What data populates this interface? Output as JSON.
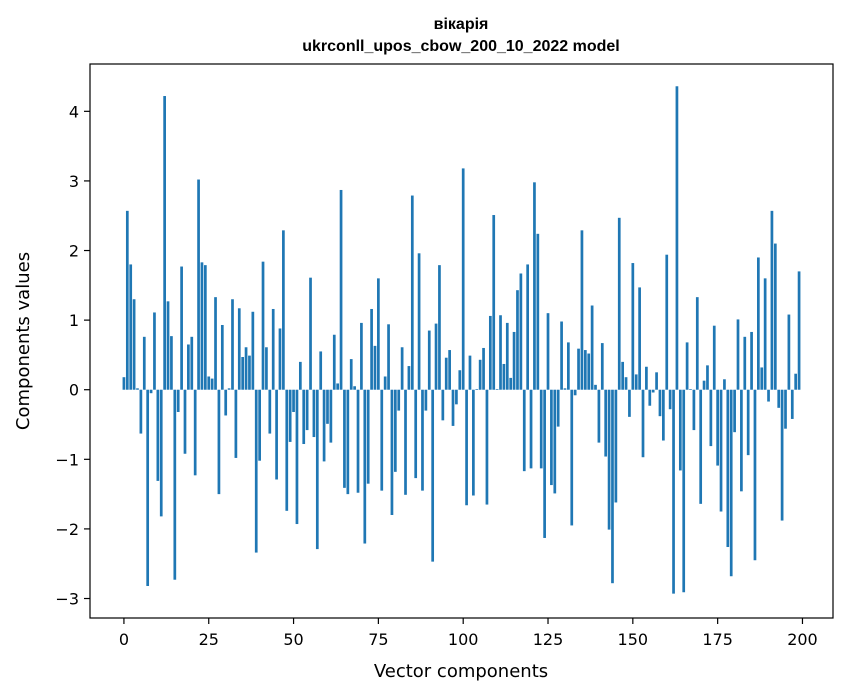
{
  "chart_data": {
    "type": "bar",
    "title_line1": "вікарія",
    "title_line2": "ukrconll_upos_cbow_200_10_2022 model",
    "xlabel": "Vector components",
    "ylabel": "Components values",
    "xlim": [
      -10,
      209
    ],
    "ylim": [
      -3.28,
      4.68
    ],
    "x_ticks": [
      0,
      25,
      50,
      75,
      100,
      125,
      150,
      175,
      200
    ],
    "y_ticks": [
      -3,
      -2,
      -1,
      0,
      1,
      2,
      3,
      4
    ],
    "y_tick_labels": [
      "−3",
      "−2",
      "−1",
      "0",
      "1",
      "2",
      "3",
      "4"
    ],
    "bar_color": "#1f77b4",
    "grid": false,
    "legend": "none",
    "x": [
      0,
      1,
      2,
      3,
      4,
      5,
      6,
      7,
      8,
      9,
      10,
      11,
      12,
      13,
      14,
      15,
      16,
      17,
      18,
      19,
      20,
      21,
      22,
      23,
      24,
      25,
      26,
      27,
      28,
      29,
      30,
      31,
      32,
      33,
      34,
      35,
      36,
      37,
      38,
      39,
      40,
      41,
      42,
      43,
      44,
      45,
      46,
      47,
      48,
      49,
      50,
      51,
      52,
      53,
      54,
      55,
      56,
      57,
      58,
      59,
      60,
      61,
      62,
      63,
      64,
      65,
      66,
      67,
      68,
      69,
      70,
      71,
      72,
      73,
      74,
      75,
      76,
      77,
      78,
      79,
      80,
      81,
      82,
      83,
      84,
      85,
      86,
      87,
      88,
      89,
      90,
      91,
      92,
      93,
      94,
      95,
      96,
      97,
      98,
      99,
      100,
      101,
      102,
      103,
      104,
      105,
      106,
      107,
      108,
      109,
      110,
      111,
      112,
      113,
      114,
      115,
      116,
      117,
      118,
      119,
      120,
      121,
      122,
      123,
      124,
      125,
      126,
      127,
      128,
      129,
      130,
      131,
      132,
      133,
      134,
      135,
      136,
      137,
      138,
      139,
      140,
      141,
      142,
      143,
      144,
      145,
      146,
      147,
      148,
      149,
      150,
      151,
      152,
      153,
      154,
      155,
      156,
      157,
      158,
      159,
      160,
      161,
      162,
      163,
      164,
      165,
      166,
      167,
      168,
      169,
      170,
      171,
      172,
      173,
      174,
      175,
      176,
      177,
      178,
      179,
      180,
      181,
      182,
      183,
      184,
      185,
      186,
      187,
      188,
      189,
      190,
      191,
      192,
      193,
      194,
      195,
      196,
      197,
      198,
      199
    ],
    "values": [
      0.18,
      2.57,
      1.8,
      1.3,
      0.02,
      -0.63,
      0.76,
      -2.82,
      -0.05,
      1.11,
      -1.31,
      -1.82,
      4.22,
      1.27,
      0.77,
      -2.73,
      -0.32,
      1.77,
      -0.92,
      0.65,
      0.76,
      -1.23,
      3.02,
      1.83,
      1.79,
      0.19,
      0.16,
      1.33,
      -1.5,
      0.93,
      -0.37,
      0.02,
      1.3,
      -0.98,
      1.17,
      0.47,
      0.61,
      0.49,
      1.12,
      -2.34,
      -1.02,
      1.84,
      0.61,
      -0.63,
      1.16,
      -1.29,
      0.88,
      2.29,
      -1.74,
      -0.75,
      -0.32,
      -1.93,
      0.4,
      -0.78,
      -0.58,
      1.61,
      -0.68,
      -2.29,
      0.55,
      -1.03,
      -0.49,
      -0.76,
      0.79,
      0.09,
      2.87,
      -1.41,
      -1.5,
      0.44,
      0.05,
      -1.48,
      0.96,
      -2.21,
      -1.35,
      1.16,
      0.63,
      1.6,
      -1.45,
      0.19,
      0.94,
      -1.8,
      -1.18,
      -0.3,
      0.61,
      -1.51,
      0.34,
      2.79,
      -1.27,
      1.96,
      -1.45,
      -0.3,
      0.85,
      -2.47,
      0.95,
      1.79,
      -0.44,
      0.46,
      0.57,
      -0.52,
      -0.21,
      0.28,
      3.18,
      -1.66,
      0.49,
      -1.52,
      0.01,
      0.43,
      0.6,
      -1.65,
      1.06,
      2.51,
      0.01,
      1.07,
      0.37,
      0.96,
      0.17,
      0.83,
      1.43,
      1.67,
      -1.17,
      1.8,
      -1.13,
      2.98,
      2.24,
      -1.13,
      -2.13,
      1.1,
      -1.37,
      -1.49,
      -0.53,
      0.98,
      0.02,
      0.68,
      -1.95,
      -0.08,
      0.59,
      2.29,
      0.57,
      0.52,
      1.21,
      0.07,
      -0.76,
      0.67,
      -0.96,
      -2.01,
      -2.78,
      -1.62,
      2.47,
      0.4,
      0.18,
      -0.39,
      1.82,
      0.22,
      1.47,
      -0.97,
      0.33,
      -0.23,
      -0.04,
      0.25,
      -0.38,
      -0.73,
      1.94,
      -0.28,
      -2.93,
      4.36,
      -1.16,
      -2.91,
      0.68,
      0.01,
      -0.58,
      1.33,
      -1.64,
      0.13,
      0.35,
      -0.81,
      0.92,
      -1.09,
      -1.75,
      0.15,
      -2.26,
      -2.68,
      -0.61,
      1.01,
      -1.46,
      0.76,
      -0.94,
      0.83,
      -2.45,
      1.9,
      0.32,
      1.6,
      -0.17,
      2.57,
      2.1,
      -0.26,
      -1.88,
      -0.56,
      1.08,
      -0.42,
      0.23,
      1.7
    ]
  }
}
